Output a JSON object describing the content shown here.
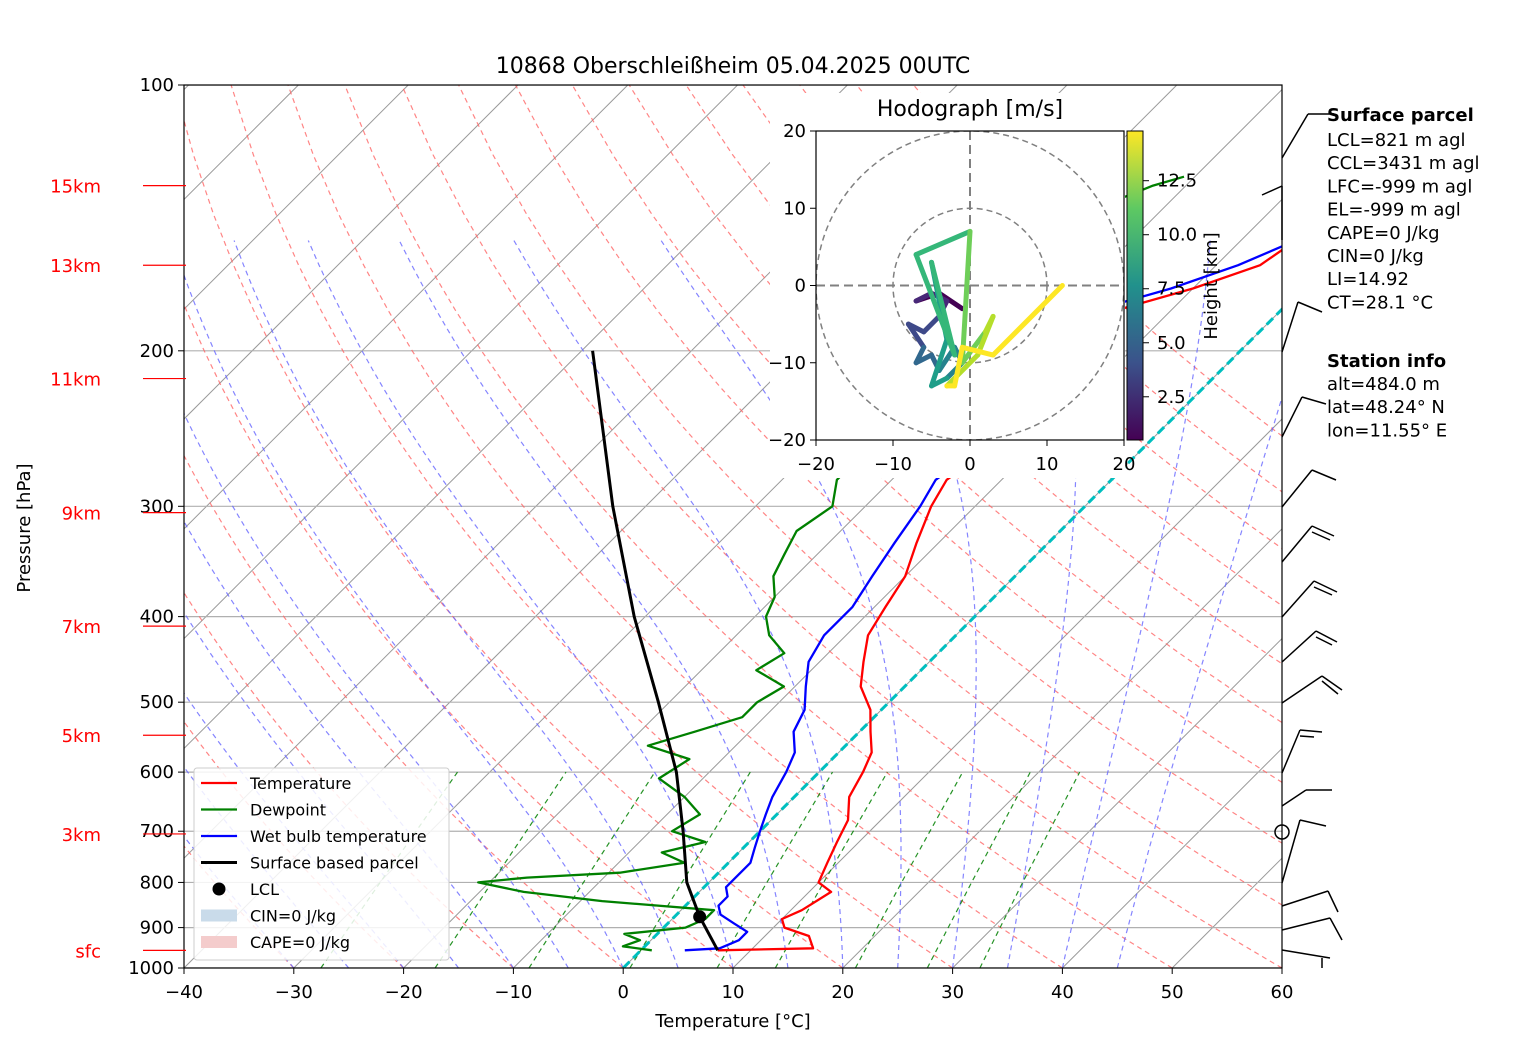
{
  "chart_data": {
    "type": "skew-t",
    "title": "10868 Oberschleißheim 05.04.2025 00UTC",
    "xlabel": "Temperature [°C]",
    "ylabel": "Pressure [hPa]",
    "xlim": [
      -40,
      60
    ],
    "ylim": [
      1000,
      100
    ],
    "x_ticks": [
      "−40",
      "−30",
      "−20",
      "−10",
      "0",
      "10",
      "20",
      "30",
      "40",
      "50",
      "60"
    ],
    "x_tick_values": [
      -40,
      -30,
      -20,
      -10,
      0,
      10,
      20,
      30,
      40,
      50,
      60
    ],
    "y_ticks": [
      "100",
      "200",
      "300",
      "400",
      "500",
      "600",
      "700",
      "800",
      "900",
      "1000"
    ],
    "y_tick_values": [
      100,
      200,
      300,
      400,
      500,
      600,
      700,
      800,
      900,
      1000
    ],
    "height_labels": [
      {
        "text": "15km",
        "p": 130
      },
      {
        "text": "13km",
        "p": 160
      },
      {
        "text": "11km",
        "p": 215
      },
      {
        "text": "9km",
        "p": 305
      },
      {
        "text": "7km",
        "p": 410
      },
      {
        "text": "5km",
        "p": 545
      },
      {
        "text": "3km",
        "p": 705
      },
      {
        "text": "sfc",
        "p": 955
      }
    ],
    "series": [
      {
        "name": "Temperature",
        "color": "#ff0000",
        "points": [
          [
            7,
            955
          ],
          [
            15.5,
            950
          ],
          [
            14,
            920
          ],
          [
            11,
            900
          ],
          [
            10,
            880
          ],
          [
            11,
            860
          ],
          [
            12,
            820
          ],
          [
            10,
            800
          ],
          [
            9,
            760
          ],
          [
            8,
            720
          ],
          [
            7,
            680
          ],
          [
            5,
            640
          ],
          [
            4,
            600
          ],
          [
            3,
            570
          ],
          [
            1,
            540
          ],
          [
            -1,
            510
          ],
          [
            -4,
            480
          ],
          [
            -6,
            450
          ],
          [
            -8,
            420
          ],
          [
            -9,
            390
          ],
          [
            -10,
            360
          ],
          [
            -12,
            330
          ],
          [
            -14,
            300
          ],
          [
            -15,
            280
          ],
          [
            -14,
            260
          ],
          [
            -14,
            240
          ],
          [
            -14,
            220
          ],
          [
            -16,
            200
          ],
          [
            -17,
            190
          ],
          [
            -15,
            180
          ],
          [
            -10,
            170
          ],
          [
            -6,
            160
          ],
          [
            -5,
            150
          ],
          [
            -3,
            145
          ],
          [
            2,
            140
          ],
          [
            3,
            135
          ],
          [
            5,
            130
          ],
          [
            5,
            127
          ]
        ]
      },
      {
        "name": "Dewpoint",
        "color": "#008000",
        "points": [
          [
            1,
            955
          ],
          [
            -2,
            945
          ],
          [
            -1,
            930
          ],
          [
            -3,
            915
          ],
          [
            2,
            900
          ],
          [
            3,
            880
          ],
          [
            3,
            860
          ],
          [
            -8,
            840
          ],
          [
            -16,
            820
          ],
          [
            -21,
            800
          ],
          [
            -17,
            790
          ],
          [
            -9,
            780
          ],
          [
            -4,
            760
          ],
          [
            -7,
            740
          ],
          [
            -4,
            720
          ],
          [
            -8,
            700
          ],
          [
            -7,
            670
          ],
          [
            -10,
            640
          ],
          [
            -14,
            610
          ],
          [
            -13,
            580
          ],
          [
            -18,
            560
          ],
          [
            -15,
            540
          ],
          [
            -12,
            520
          ],
          [
            -12,
            500
          ],
          [
            -11,
            480
          ],
          [
            -15,
            460
          ],
          [
            -14,
            440
          ],
          [
            -17,
            420
          ],
          [
            -19,
            400
          ],
          [
            -20,
            380
          ],
          [
            -22,
            360
          ],
          [
            -23,
            340
          ],
          [
            -24,
            320
          ],
          [
            -23,
            300
          ],
          [
            -25,
            280
          ],
          [
            -25,
            260
          ],
          [
            -26,
            240
          ],
          [
            -26,
            220
          ],
          [
            -25,
            210
          ],
          [
            -26,
            200
          ],
          [
            -25,
            190
          ],
          [
            -24,
            180
          ],
          [
            -27,
            170
          ],
          [
            -31,
            160
          ],
          [
            -30,
            150
          ],
          [
            -29,
            145
          ],
          [
            -27,
            140
          ],
          [
            -25,
            135
          ],
          [
            -23,
            130
          ],
          [
            -21,
            127
          ]
        ]
      },
      {
        "name": "Wet bulb temperature",
        "color": "#0000ff",
        "points": [
          [
            4,
            955
          ],
          [
            7,
            950
          ],
          [
            8,
            930
          ],
          [
            8,
            910
          ],
          [
            6,
            890
          ],
          [
            4,
            870
          ],
          [
            3,
            850
          ],
          [
            3,
            830
          ],
          [
            2,
            810
          ],
          [
            2,
            790
          ],
          [
            2,
            760
          ],
          [
            1,
            730
          ],
          [
            0,
            700
          ],
          [
            -1,
            670
          ],
          [
            -2,
            640
          ],
          [
            -3,
            600
          ],
          [
            -4,
            570
          ],
          [
            -6,
            540
          ],
          [
            -7,
            510
          ],
          [
            -9,
            480
          ],
          [
            -11,
            450
          ],
          [
            -12,
            420
          ],
          [
            -12,
            390
          ],
          [
            -13,
            360
          ],
          [
            -14,
            330
          ],
          [
            -15,
            300
          ],
          [
            -16,
            280
          ],
          [
            -15,
            260
          ],
          [
            -15,
            240
          ],
          [
            -15,
            220
          ],
          [
            -17,
            200
          ],
          [
            -18,
            190
          ],
          [
            -17,
            180
          ],
          [
            -12,
            170
          ],
          [
            -8,
            160
          ],
          [
            -5,
            150
          ],
          [
            -3,
            145
          ],
          [
            2,
            140
          ],
          [
            3,
            135
          ],
          [
            5,
            130
          ],
          [
            5,
            127
          ]
        ]
      },
      {
        "name": "Surface based parcel",
        "color": "#000000",
        "points": [
          [
            7,
            955
          ],
          [
            2.3,
            875
          ],
          [
            -2,
            800
          ],
          [
            -7,
            700
          ],
          [
            -13,
            600
          ],
          [
            -21,
            500
          ],
          [
            -31,
            400
          ],
          [
            -43,
            300
          ],
          [
            -59,
            200
          ]
        ]
      }
    ],
    "legend": {
      "placement": "lower-left",
      "entries": [
        {
          "label": "Temperature",
          "color": "#ff0000",
          "kind": "line"
        },
        {
          "label": "Dewpoint",
          "color": "#008000",
          "kind": "line"
        },
        {
          "label": "Wet bulb temperature",
          "color": "#0000ff",
          "kind": "line"
        },
        {
          "label": "Surface based parcel",
          "color": "#000000",
          "kind": "line"
        },
        {
          "label": "LCL",
          "color": "#000000",
          "kind": "dot"
        },
        {
          "label": "CIN=0 J/kg",
          "color": "#c9dbea",
          "kind": "patch"
        },
        {
          "label": "CAPE=0 J/kg",
          "color": "#f4cccc",
          "kind": "patch"
        }
      ]
    },
    "lcl": {
      "t": 2.3,
      "p": 875
    },
    "hodograph": {
      "title": "Hodograph [m/s]",
      "xlim": [
        -20,
        20
      ],
      "ylim": [
        -20,
        20
      ],
      "ticks": [
        "−20",
        "−10",
        "0",
        "10",
        "20"
      ],
      "tick_values": [
        -20,
        -10,
        0,
        10,
        20
      ],
      "colorbar_label": "Height [km]",
      "colorbar_ticks": [
        "2.5",
        "5.0",
        "7.5",
        "10.0",
        "12.5"
      ],
      "colorbar_values": [
        2.5,
        5.0,
        7.5,
        10.0,
        12.5
      ],
      "colorbar_range": [
        0.5,
        14.8
      ],
      "trace": [
        [
          -1,
          -3,
          0.7
        ],
        [
          -4,
          -1,
          1.0
        ],
        [
          -7,
          -2,
          1.4
        ],
        [
          -5,
          -1,
          2.0
        ],
        [
          -3,
          -2,
          2.5
        ],
        [
          -4,
          -4,
          3.0
        ],
        [
          -6,
          -6,
          3.5
        ],
        [
          -8,
          -5,
          4.0
        ],
        [
          -6,
          -8,
          4.5
        ],
        [
          -7,
          -10,
          5.0
        ],
        [
          -5,
          -9,
          5.5
        ],
        [
          -4,
          -11,
          6.0
        ],
        [
          -2,
          -8,
          6.5
        ],
        [
          -1,
          -10,
          7.0
        ],
        [
          -3,
          -12,
          7.5
        ],
        [
          -5,
          -13,
          8.0
        ],
        [
          -3,
          -7,
          8.5
        ],
        [
          -5,
          3,
          9.0
        ],
        [
          -2,
          -9,
          9.5
        ],
        [
          -7,
          4,
          10.0
        ],
        [
          0,
          7,
          10.5
        ],
        [
          -1,
          -10,
          11.0
        ],
        [
          2,
          -6,
          11.5
        ],
        [
          3,
          -4,
          12.0
        ],
        [
          1,
          -9,
          12.5
        ],
        [
          -3,
          -13,
          13.0
        ],
        [
          -2,
          -13,
          13.5
        ],
        [
          -1,
          -8,
          14.0
        ],
        [
          3,
          -9,
          14.5
        ],
        [
          12,
          0,
          14.8
        ]
      ]
    },
    "surface_parcel": {
      "heading": "Surface parcel",
      "lines": [
        "LCL=821 m agl",
        "CCL=3431 m agl",
        "LFC=-999 m agl",
        "EL=-999 m agl",
        "CAPE=0 J/kg",
        "CIN=0 J/kg",
        "LI=14.92",
        "CT=28.1 °C"
      ]
    },
    "station_info": {
      "heading": "Station info",
      "lines": [
        "alt=484.0 m",
        "lat=48.24° N",
        "lon=11.55° E"
      ]
    },
    "colors": {
      "dry_adiabat": "#ff6666",
      "moist_adiabat": "#6666ff",
      "mixing_ratio": "#008000",
      "isotherm": "#999999",
      "zero_line": "#00bfbf"
    }
  }
}
